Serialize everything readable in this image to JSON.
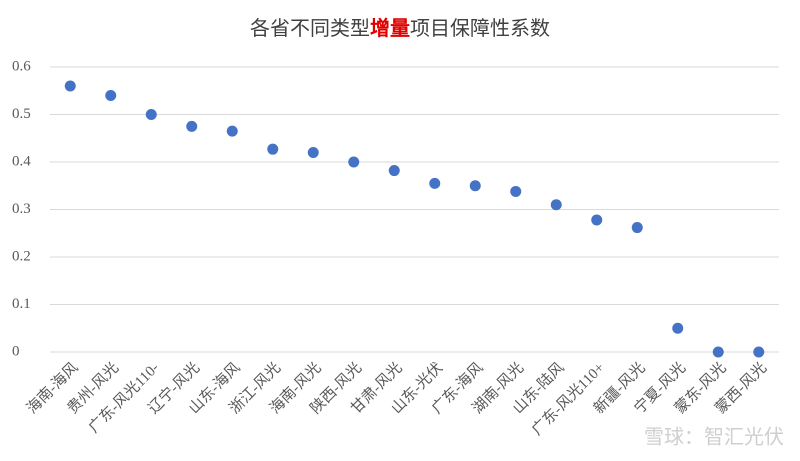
{
  "chart_data": {
    "type": "scatter",
    "title": [
      {
        "text": "各省不同类型",
        "color": "#404040"
      },
      {
        "text": "增量",
        "color": "#e00000"
      },
      {
        "text": "项目保障性系数",
        "color": "#404040"
      }
    ],
    "categories": [
      "海南-海风",
      "贵州-风光",
      "广东-风光110-",
      "辽宁-风光",
      "山东-海风",
      "浙江-风光",
      "海南-风光",
      "陕西-风光",
      "甘肃-风光",
      "山东-光伏",
      "广东-海风",
      "湖南-风光",
      "山东-陆风",
      "广东-风光110+",
      "新疆-风光",
      "宁夏-风光",
      "蒙东-风光",
      "蒙西-风光"
    ],
    "values": [
      0.56,
      0.54,
      0.5,
      0.475,
      0.465,
      0.427,
      0.42,
      0.4,
      0.382,
      0.355,
      0.35,
      0.338,
      0.31,
      0.278,
      0.262,
      0.05,
      0,
      0
    ],
    "color": "#4472c4",
    "ylim": [
      0,
      0.6
    ],
    "yticks": [
      0,
      0.1,
      0.2,
      0.3,
      0.4,
      0.5,
      0.6
    ],
    "grid": true,
    "watermark": "雪球：智汇光伏"
  }
}
